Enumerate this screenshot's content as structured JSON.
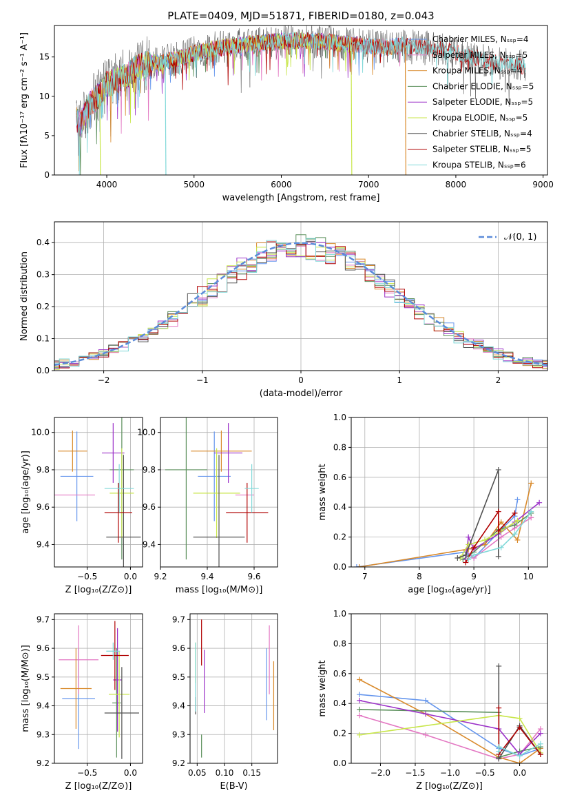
{
  "figure": {
    "title": "PLATE=0409, MJD=51871, FIBERID=0180, z=0.043"
  },
  "colors": {
    "series": [
      "#6495ed",
      "#e377c2",
      "#d98a2b",
      "#5a8f5a",
      "#9b30c8",
      "#c8e64a",
      "#505050",
      "#b00000",
      "#7fd8d8"
    ]
  },
  "chart_data": [
    {
      "id": "spectrum",
      "type": "line",
      "xlabel": "wavelength [Angstrom, rest frame]",
      "ylabel": "Flux [fλ10⁻¹⁷ erg cm⁻² s⁻¹ A⁻¹]",
      "xlim": [
        3400,
        9050
      ],
      "ylim": [
        0,
        19
      ],
      "xticks": [
        "4000",
        "5000",
        "6000",
        "7000",
        "8000",
        "9000"
      ],
      "yticks": [
        "0",
        "5",
        "10",
        "15"
      ],
      "legend_placement": "right",
      "series": [
        {
          "name": "Chabrier MILES, Nₛₛₚ=4",
          "x_range": [
            3650,
            7400
          ]
        },
        {
          "name": "Salpeter MILES, Nₛₛₚ=5",
          "x_range": [
            3650,
            7400
          ]
        },
        {
          "name": "Kroupa MILES, Nₛₛₚ=4",
          "x_range": [
            3650,
            7400
          ]
        },
        {
          "name": "Chabrier ELODIE, Nₛₛₚ=5",
          "x_range": [
            3650,
            6800
          ]
        },
        {
          "name": "Salpeter ELODIE, Nₛₛₚ=5",
          "x_range": [
            3650,
            6800
          ]
        },
        {
          "name": "Kroupa ELODIE, Nₛₛₚ=5",
          "x_range": [
            3900,
            6800
          ]
        },
        {
          "name": "Chabrier STELIB, Nₛₛₚ=4",
          "x_range": [
            3650,
            8800
          ]
        },
        {
          "name": "Salpeter STELIB, Nₛₛₚ=5",
          "x_range": [
            3650,
            8800
          ]
        },
        {
          "name": "Kroupa STELIB, Nₛₛₚ=6",
          "x_range": [
            3650,
            8800
          ]
        }
      ],
      "continuum": {
        "x": [
          3650,
          3700,
          3800,
          3900,
          4000,
          4100,
          4200,
          4300,
          4400,
          4500,
          4600,
          4700,
          4800,
          4900,
          5000,
          5200,
          5400,
          5600,
          5800,
          6000,
          6200,
          6400,
          6600,
          6800,
          7000,
          7200,
          7400,
          7600,
          7800,
          8000,
          8200,
          8400,
          8600,
          8800
        ],
        "y": [
          7,
          6.5,
          9,
          10,
          11.5,
          12,
          12.5,
          13.3,
          13.8,
          14.3,
          14.2,
          14.5,
          14.8,
          15,
          15.5,
          16,
          16.3,
          16.6,
          16.8,
          17,
          17.1,
          17,
          16.8,
          16.6,
          16.4,
          16.2,
          16.5,
          16.2,
          16,
          15.5,
          15,
          14.5,
          14,
          13.8
        ]
      },
      "dropouts": [
        {
          "x": 3920,
          "y": 0
        },
        {
          "x": 4670,
          "y": 0
        },
        {
          "x": 6800,
          "y": 0
        },
        {
          "x": 7420,
          "y": 0
        }
      ]
    },
    {
      "id": "residuals",
      "type": "histogram",
      "xlabel": "(data-model)/error",
      "ylabel": "Normed distribution",
      "xlim": [
        -2.5,
        2.5
      ],
      "ylim": [
        0,
        0.465
      ],
      "xticks": [
        "−2",
        "−1",
        "0",
        "1",
        "2"
      ],
      "yticks": [
        "0.0",
        "0.1",
        "0.2",
        "0.3",
        "0.4"
      ],
      "grid": true,
      "legend_placement": "top-right",
      "reference_curve": {
        "name": "𝒩(0, 1)",
        "mean": 0,
        "sigma": 1
      },
      "bin_width": 0.1
    },
    {
      "id": "z-age",
      "type": "errorbar",
      "xlabel": "Z [log₁₀(Z/Z⊙)]",
      "ylabel": "age  [log₁₀(age/yr)]",
      "xlim": [
        -0.88,
        0.14
      ],
      "ylim": [
        9.28,
        10.08
      ],
      "xticks": [
        -0.5,
        0.0
      ],
      "xtick_labels": [
        "−0.5",
        "0.0"
      ],
      "yticks": [
        9.4,
        9.6,
        9.8,
        10.0
      ],
      "ytick_labels": [
        "9.4",
        "9.6",
        "9.8",
        "10.0"
      ],
      "points": [
        {
          "x": -0.62,
          "y": 9.765,
          "xerr": 0.19,
          "yerr": 0.24
        },
        {
          "x": -0.67,
          "y": 9.665,
          "xerr": 0.26,
          "yerr": 0.0
        },
        {
          "x": -0.67,
          "y": 9.9,
          "xerr": 0.17,
          "yerr": 0.11
        },
        {
          "x": -0.1,
          "y": 9.8,
          "xerr": 0.14,
          "yerr": 0.48
        },
        {
          "x": -0.2,
          "y": 9.89,
          "xerr": 0.13,
          "yerr": 0.16
        },
        {
          "x": -0.1,
          "y": 9.675,
          "xerr": 0.14,
          "yerr": 0.24
        },
        {
          "x": -0.08,
          "y": 9.44,
          "xerr": 0.2,
          "yerr": 0.44
        },
        {
          "x": -0.14,
          "y": 9.57,
          "xerr": 0.16,
          "yerr": 0.16
        },
        {
          "x": -0.13,
          "y": 9.7,
          "xerr": 0.17,
          "yerr": 0.13
        }
      ]
    },
    {
      "id": "mass-age",
      "type": "errorbar",
      "xlabel": "mass [log₁₀(M/M⊙)]",
      "ylabel": "",
      "xlim": [
        9.2,
        9.7
      ],
      "ylim": [
        9.28,
        10.08
      ],
      "xticks": [
        9.2,
        9.4,
        9.6
      ],
      "xtick_labels": [
        "9.2",
        "9.4",
        "9.6"
      ],
      "yticks": [
        9.4,
        9.6,
        9.8,
        10.0
      ],
      "ytick_labels": [
        "9.4",
        "9.6",
        "9.8",
        "10.0"
      ],
      "points": [
        {
          "x": 9.43,
          "y": 9.765,
          "xerr": 0.07,
          "yerr": 0.24
        },
        {
          "x": 9.56,
          "y": 9.665,
          "xerr": 0.04,
          "yerr": 0.0
        },
        {
          "x": 9.46,
          "y": 9.9,
          "xerr": 0.13,
          "yerr": 0.11
        },
        {
          "x": 9.31,
          "y": 9.8,
          "xerr": 0.09,
          "yerr": 0.48
        },
        {
          "x": 9.49,
          "y": 9.89,
          "xerr": 0.06,
          "yerr": 0.16
        },
        {
          "x": 9.44,
          "y": 9.675,
          "xerr": 0.1,
          "yerr": 0.24
        },
        {
          "x": 9.45,
          "y": 9.44,
          "xerr": 0.11,
          "yerr": 0.44
        },
        {
          "x": 9.57,
          "y": 9.57,
          "xerr": 0.09,
          "yerr": 0.16
        },
        {
          "x": 9.59,
          "y": 9.7,
          "xerr": 0.03,
          "yerr": 0.13
        }
      ]
    },
    {
      "id": "age-weight",
      "type": "line",
      "xlabel": "age  [log₁₀(age/yr)]",
      "ylabel": "mass weight",
      "xlim": [
        6.75,
        10.35
      ],
      "ylim": [
        0,
        1
      ],
      "xticks": [
        7,
        8,
        9,
        10
      ],
      "xtick_labels": [
        "7",
        "8",
        "9",
        "10"
      ],
      "yticks": [
        0,
        0.2,
        0.4,
        0.6,
        0.8,
        1.0
      ],
      "ytick_labels": [
        "0.0",
        "0.2",
        "0.4",
        "0.6",
        "0.8",
        "1.0"
      ],
      "grid": true,
      "series": [
        {
          "x": [
            6.85,
            8.85,
            9.0,
            9.5,
            9.75,
            9.8
          ],
          "y": [
            0.0,
            0.1,
            0.06,
            0.25,
            0.34,
            0.45
          ]
        },
        {
          "x": [
            8.85,
            9.0,
            9.5,
            9.75,
            10.05
          ],
          "y": [
            0.11,
            0.06,
            0.2,
            0.26,
            0.33
          ]
        },
        {
          "x": [
            6.9,
            8.9,
            9.2,
            9.5,
            9.8,
            10.05
          ],
          "y": [
            0.0,
            0.12,
            0.15,
            0.3,
            0.18,
            0.56
          ]
        },
        {
          "x": [
            8.8,
            9.0,
            9.45,
            9.75,
            10.05
          ],
          "y": [
            0.05,
            0.1,
            0.25,
            0.28,
            0.36
          ]
        },
        {
          "x": [
            8.85,
            8.9,
            9.0,
            9.45,
            9.75,
            10.2
          ],
          "y": [
            0.05,
            0.2,
            0.12,
            0.22,
            0.3,
            0.43
          ]
        },
        {
          "x": [
            8.75,
            8.9,
            9.2,
            9.5,
            9.8
          ],
          "y": [
            0.06,
            0.15,
            0.18,
            0.24,
            0.31
          ]
        },
        {
          "x": [
            8.7,
            8.85,
            9.45,
            9.45
          ],
          "y": [
            0.06,
            0.08,
            0.65,
            0.07
          ]
        },
        {
          "x": [
            8.85,
            9.0,
            9.45,
            9.45,
            9.75
          ],
          "y": [
            0.03,
            0.13,
            0.37,
            0.24,
            0.36
          ]
        },
        {
          "x": [
            8.9,
            9.0,
            9.5,
            9.75,
            10.05
          ],
          "y": [
            0.05,
            0.08,
            0.13,
            0.22,
            0.37
          ]
        }
      ]
    },
    {
      "id": "z-mass",
      "type": "errorbar",
      "xlabel": "Z [log₁₀(Z/Z⊙)]",
      "ylabel": "mass [log₁₀(M/M⊙)]",
      "xlim": [
        -0.88,
        0.14
      ],
      "ylim": [
        9.2,
        9.72
      ],
      "xticks": [
        -0.5,
        0.0
      ],
      "xtick_labels": [
        "−0.5",
        "0.0"
      ],
      "yticks": [
        9.2,
        9.3,
        9.4,
        9.5,
        9.6,
        9.7
      ],
      "ytick_labels": [
        "9.2",
        "9.3",
        "9.4",
        "9.5",
        "9.6",
        "9.7"
      ],
      "points": [
        {
          "x": -0.6,
          "y": 9.425,
          "xerr": 0.19,
          "yerr": 0.175
        },
        {
          "x": -0.6,
          "y": 9.56,
          "xerr": 0.23,
          "yerr": 0.12
        },
        {
          "x": -0.63,
          "y": 9.46,
          "xerr": 0.18,
          "yerr": 0.14
        },
        {
          "x": -0.16,
          "y": 9.41,
          "xerr": 0.05,
          "yerr": 0.19
        },
        {
          "x": -0.15,
          "y": 9.49,
          "xerr": 0.05,
          "yerr": 0.18
        },
        {
          "x": -0.13,
          "y": 9.44,
          "xerr": 0.12,
          "yerr": 0.15
        },
        {
          "x": -0.1,
          "y": 9.375,
          "xerr": 0.2,
          "yerr": 0.16
        },
        {
          "x": -0.18,
          "y": 9.575,
          "xerr": 0.16,
          "yerr": 0.12
        },
        {
          "x": -0.2,
          "y": 9.59,
          "xerr": 0.08,
          "yerr": 0.03
        }
      ]
    },
    {
      "id": "ebv-mass",
      "type": "errorbar",
      "xlabel": "E(B-V)",
      "ylabel": "",
      "xlim": [
        0.037,
        0.197
      ],
      "ylim": [
        9.2,
        9.72
      ],
      "xticks": [
        0.05,
        0.1,
        0.15
      ],
      "xtick_labels": [
        "0.05",
        "0.10",
        "0.15"
      ],
      "yticks": [
        9.2,
        9.3,
        9.4,
        9.5,
        9.6,
        9.7
      ],
      "ytick_labels": [
        "9.2",
        "9.3",
        "9.4",
        "9.5",
        "9.6",
        "9.7"
      ],
      "points": [
        {
          "x": 0.177,
          "y": 9.475,
          "xerr": 0,
          "yerr": 0.125
        },
        {
          "x": 0.182,
          "y": 9.56,
          "xerr": 0,
          "yerr": 0.12
        },
        {
          "x": 0.19,
          "y": 9.435,
          "xerr": 0,
          "yerr": 0.12
        },
        {
          "x": 0.058,
          "y": 9.26,
          "xerr": 0,
          "yerr": 0.04
        },
        {
          "x": 0.063,
          "y": 9.485,
          "xerr": 0,
          "yerr": 0.11
        },
        {
          "x": 0.047,
          "y": 9.55,
          "xerr": 0,
          "yerr": 0.07
        },
        {
          "x": 0.047,
          "y": 9.4,
          "xerr": 0,
          "yerr": 0.03
        },
        {
          "x": 0.058,
          "y": 9.62,
          "xerr": 0,
          "yerr": 0.08
        },
        {
          "x": 0.047,
          "y": 9.5,
          "xerr": 0,
          "yerr": 0.12
        }
      ]
    },
    {
      "id": "z-weight",
      "type": "line",
      "xlabel": "Z [log₁₀(Z/Z⊙)]",
      "ylabel": "mass weight",
      "xlim": [
        -2.42,
        0.4
      ],
      "ylim": [
        0,
        1
      ],
      "xticks": [
        -2.0,
        -1.5,
        -1.0,
        -0.5,
        0.0
      ],
      "xtick_labels": [
        "−2.0",
        "−1.5",
        "−1.0",
        "−0.5",
        "0.0"
      ],
      "yticks": [
        0,
        0.2,
        0.4,
        0.6,
        0.8,
        1.0
      ],
      "ytick_labels": [
        "0.0",
        "0.2",
        "0.4",
        "0.6",
        "0.8",
        "1.0"
      ],
      "grid": true,
      "series": [
        {
          "x": [
            -2.3,
            -1.35,
            -0.3,
            0.0,
            0.3
          ],
          "y": [
            0.46,
            0.42,
            0.1,
            0.05,
            0.1
          ]
        },
        {
          "x": [
            -2.3,
            -1.35,
            -0.3,
            0.0,
            0.3
          ],
          "y": [
            0.32,
            0.19,
            0.03,
            0.06,
            0.23
          ]
        },
        {
          "x": [
            -2.3,
            -1.35,
            -0.3,
            0.0,
            0.3
          ],
          "y": [
            0.56,
            0.33,
            0.04,
            0.0,
            0.1
          ]
        },
        {
          "x": [
            -2.3,
            -0.3,
            -0.3,
            0.0,
            0.3
          ],
          "y": [
            0.36,
            0.34,
            0.04,
            0.08,
            0.11
          ]
        },
        {
          "x": [
            -2.3,
            -1.35,
            -0.3,
            0.0,
            0.3
          ],
          "y": [
            0.42,
            0.33,
            0.23,
            0.06,
            0.2
          ]
        },
        {
          "x": [
            -2.3,
            -0.3,
            0.0,
            0.3
          ],
          "y": [
            0.19,
            0.32,
            0.3,
            0.07
          ]
        },
        {
          "x": [
            -0.3,
            -0.3,
            0.0,
            0.3
          ],
          "y": [
            0.65,
            0.03,
            0.25,
            0.06
          ]
        },
        {
          "x": [
            -0.3,
            -0.3,
            0.0,
            0.3
          ],
          "y": [
            0.37,
            0.06,
            0.24,
            0.06
          ]
        },
        {
          "x": [
            -0.3,
            -0.3,
            0.0,
            0.3
          ],
          "y": [
            0.08,
            0.11,
            0.05,
            0.13
          ]
        }
      ]
    }
  ]
}
